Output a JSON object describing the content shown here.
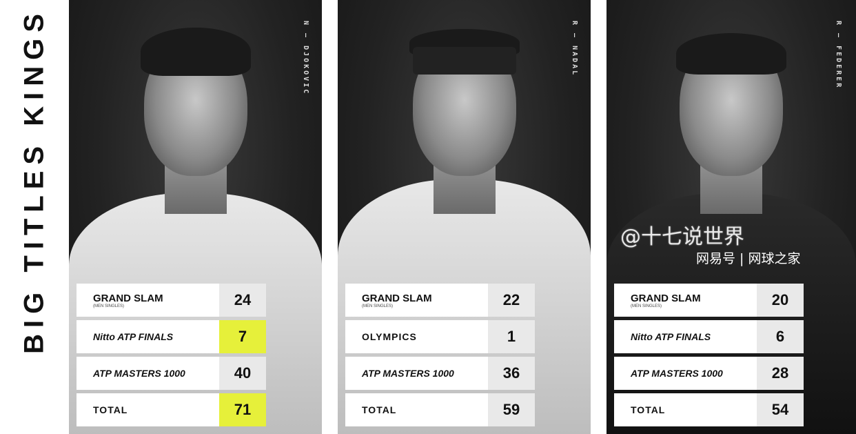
{
  "title": "BIG TITLES KINGS",
  "highlight_color": "#e6f03a",
  "players": [
    {
      "name": "N — DJOKOVIC",
      "rows": [
        {
          "label": "GRAND SLAM",
          "sub": "(MEN SINGLES)",
          "value": "24",
          "highlight": false
        },
        {
          "label": "Nitto ATP FINALS",
          "value": "7",
          "highlight": true
        },
        {
          "label": "ATP MASTERS 1000",
          "value": "40",
          "highlight": false
        },
        {
          "label": "TOTAL",
          "value": "71",
          "highlight": true
        }
      ]
    },
    {
      "name": "R — NADAL",
      "rows": [
        {
          "label": "GRAND SLAM",
          "sub": "(MEN SINGLES)",
          "value": "22",
          "highlight": false
        },
        {
          "label": "OLYMPICS",
          "value": "1",
          "highlight": false
        },
        {
          "label": "ATP MASTERS 1000",
          "value": "36",
          "highlight": false
        },
        {
          "label": "TOTAL",
          "value": "59",
          "highlight": false
        }
      ]
    },
    {
      "name": "R — FEDERER",
      "rows": [
        {
          "label": "GRAND SLAM",
          "sub": "(MEN SINGLES)",
          "value": "20",
          "highlight": false
        },
        {
          "label": "Nitto ATP FINALS",
          "value": "6",
          "highlight": false
        },
        {
          "label": "ATP MASTERS 1000",
          "value": "28",
          "highlight": false
        },
        {
          "label": "TOTAL",
          "value": "54",
          "highlight": false
        }
      ]
    }
  ],
  "watermark": {
    "line1": "@十七说世界",
    "line2": "网易号 | 网球之家"
  }
}
